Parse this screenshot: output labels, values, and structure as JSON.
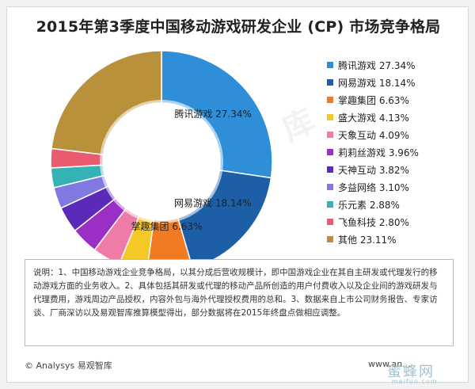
{
  "chart_data": {
    "type": "pie",
    "title": "2015年第3季度中国移动游戏研发企业 (CP) 市场竞争格局",
    "donut": true,
    "legend_position": "right",
    "slices": [
      {
        "label": "腾讯游戏",
        "value": 27.34,
        "display": "腾讯游戏 27.34%",
        "color": "#2e8fd8"
      },
      {
        "label": "网易游戏",
        "value": 18.14,
        "display": "网易游戏 18.14%",
        "color": "#1c5fa6"
      },
      {
        "label": "掌趣集团",
        "value": 6.63,
        "display": "掌趣集团 6.63%",
        "color": "#f07b22"
      },
      {
        "label": "盛大游戏",
        "value": 4.13,
        "display": "盛大游戏 4.13%",
        "color": "#f5c827"
      },
      {
        "label": "天象互动",
        "value": 4.09,
        "display": "天象互动 4.09%",
        "color": "#ef7ba7"
      },
      {
        "label": "莉莉丝游戏",
        "value": 3.96,
        "display": "莉莉丝游戏 3.96%",
        "color": "#9b2fc5"
      },
      {
        "label": "天神互动",
        "value": 3.82,
        "display": "天神互动 3.82%",
        "color": "#5b2ab8"
      },
      {
        "label": "多益网络",
        "value": 3.1,
        "display": "多益网络 3.10%",
        "color": "#7f79e0"
      },
      {
        "label": "乐元素",
        "value": 2.88,
        "display": "乐元素 2.88%",
        "color": "#35b2b5"
      },
      {
        "label": "飞鱼科技",
        "value": 2.8,
        "display": "飞鱼科技 2.80%",
        "color": "#ea5b6f"
      },
      {
        "label": "其他",
        "value": 23.11,
        "display": "其他 23.11%",
        "color": "#b8913a"
      }
    ],
    "data_labels": [
      {
        "slice": 0,
        "text": "腾讯游戏 27.34%"
      },
      {
        "slice": 1,
        "text": "网易游戏 18.14%"
      },
      {
        "slice": 2,
        "text": "掌趣集团 6.63%"
      }
    ]
  },
  "watermark": {
    "center": "易观智库",
    "brand": "蜜蜂网",
    "brand_sub": "meifun.com"
  },
  "note": "说明：1、中国移动游戏企业竞争格局，以其分成后营收规模计，即中国游戏企业在其自主研发或代理发行的移动游戏方面的业务收入。2、具体包括其研发或代理的移动产品所创造的用户付费收入以及企业间的游戏研发与代理费用，游戏周边产品授权，内容外包与海外代理授权费用的总和。3、数据来自上市公司财务报告、专家访谈、厂商深访以及易观智库推算模型得出，部分数据将在2015年终盘点做相应调整。",
  "footer": {
    "source": "© Analysys 易观智库",
    "url": "www.an..."
  }
}
